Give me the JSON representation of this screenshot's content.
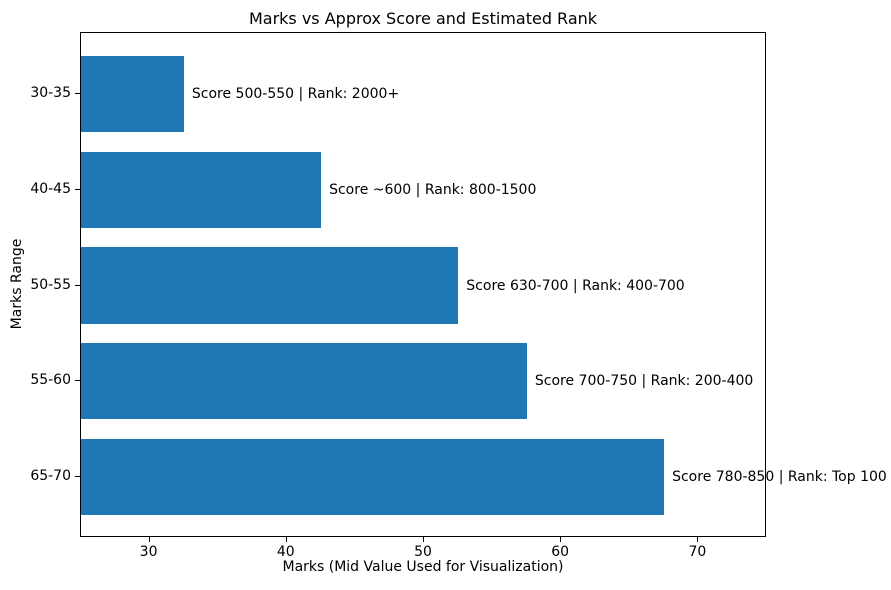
{
  "figure": {
    "background": "#ffffff"
  },
  "chart_data": {
    "type": "bar",
    "orientation": "horizontal",
    "title": "Marks vs Approx Score and Estimated Rank",
    "xlabel": "Marks (Mid Value Used for Visualization)",
    "ylabel": "Marks Range",
    "categories": [
      "30-35",
      "40-45",
      "50-55",
      "55-60",
      "65-70"
    ],
    "values": [
      32.5,
      42.5,
      52.5,
      57.5,
      67.5
    ],
    "bar_labels": [
      "Score 500-550 | Rank: 2000+",
      "Score ~600 | Rank: 800-1500",
      "Score 630-700 | Rank: 400-700",
      "Score 700-750 | Rank: 200-400",
      "Score 780-850 | Rank: Top 100"
    ],
    "xlim": [
      25,
      75
    ],
    "xticks": [
      30,
      40,
      50,
      60,
      70
    ],
    "xtick_labels": [
      "30",
      "40",
      "50",
      "60",
      "70"
    ],
    "bar_color": "#1f77b4",
    "axis_color": "#000000",
    "text_color": "#000000",
    "grid": false,
    "legend_position": "none"
  }
}
